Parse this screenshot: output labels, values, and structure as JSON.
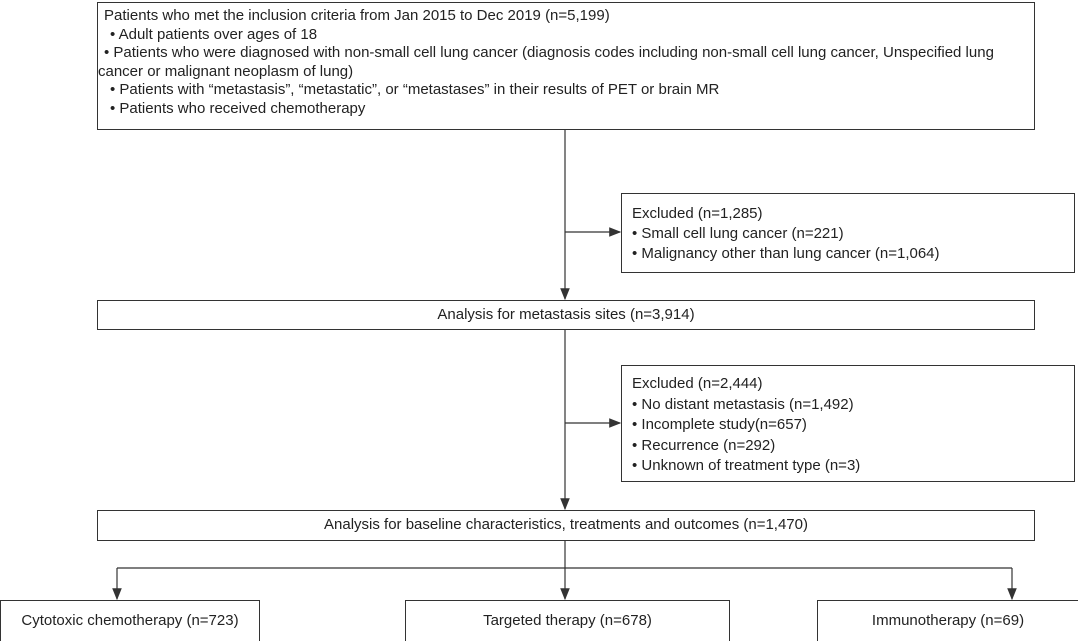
{
  "inclusion": {
    "title": "Patients who met the inclusion criteria from Jan 2015 to Dec 2019 (n=5,199)",
    "bullets": [
      "• Adult patients over ages of 18",
      "• Patients who were diagnosed with non-small cell lung cancer (diagnosis codes including non-small cell lung cancer, Unspecified lung cancer or malignant neoplasm of lung)",
      "• Patients with “metastasis”, “metastatic”, or “metastases” in their results of PET or brain MR",
      "• Patients who received chemotherapy"
    ]
  },
  "excluded_1": {
    "title": "Excluded (n=1,285)",
    "bullets": [
      "• Small cell lung cancer (n=221)",
      "• Malignancy other than lung cancer (n=1,064)"
    ]
  },
  "metastasis_analysis": {
    "label": "Analysis for metastasis sites (n=3,914)"
  },
  "excluded_2": {
    "title": "Excluded (n=2,444)",
    "bullets": [
      "• No distant metastasis (n=1,492)",
      "• Incomplete study(n=657)",
      "• Recurrence (n=292)",
      "• Unknown of treatment type (n=3)"
    ]
  },
  "baseline_analysis": {
    "label": "Analysis for baseline characteristics, treatments and outcomes (n=1,470)"
  },
  "groups": [
    "Cytotoxic chemotherapy (n=723)",
    "Targeted therapy (n=678)",
    "Immunotherapy (n=69)"
  ]
}
